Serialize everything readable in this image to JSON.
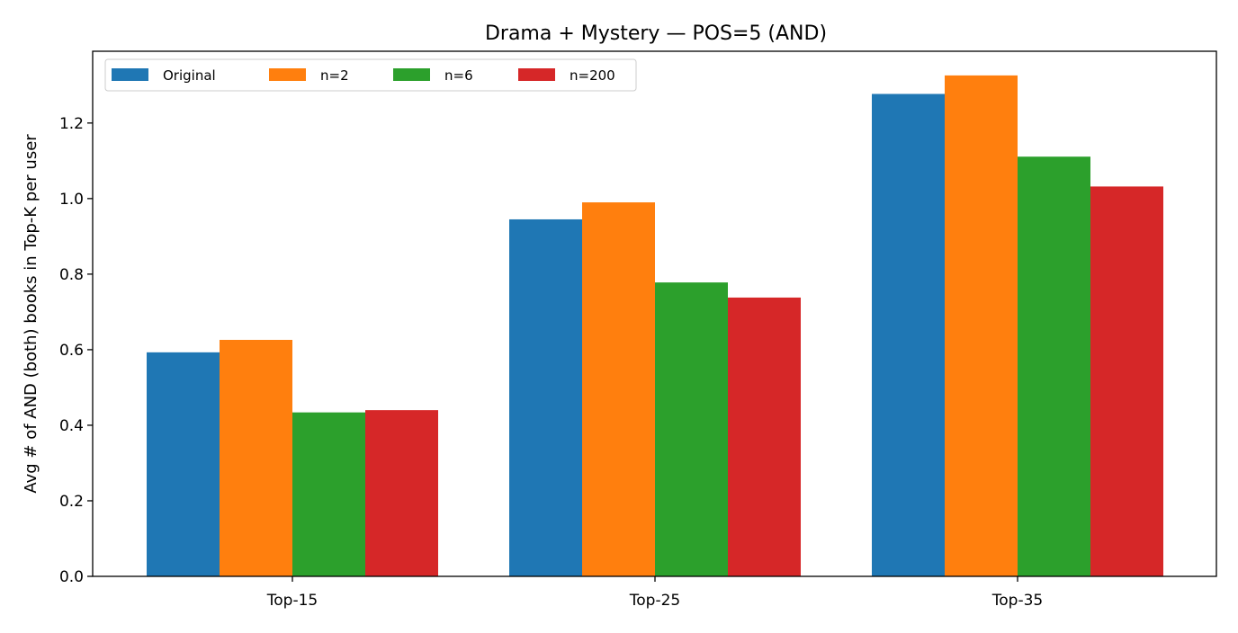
{
  "chart_data": {
    "type": "bar",
    "title": "Drama + Mystery — POS=5 (AND)",
    "xlabel": "",
    "ylabel": "Avg # of AND (both) books in Top-K per user",
    "categories": [
      "Top-15",
      "Top-25",
      "Top-35"
    ],
    "series": [
      {
        "name": "Original",
        "color": "#1f77b4",
        "values": [
          0.593,
          0.945,
          1.277
        ]
      },
      {
        "name": "n=2",
        "color": "#ff7f0e",
        "values": [
          0.626,
          0.99,
          1.326
        ]
      },
      {
        "name": "n=6",
        "color": "#2ca02c",
        "values": [
          0.434,
          0.778,
          1.111
        ]
      },
      {
        "name": "n=200",
        "color": "#d62728",
        "values": [
          0.44,
          0.738,
          1.032
        ]
      }
    ],
    "ylim": [
      0,
      1.39
    ],
    "yticks": [
      "0.0",
      "0.2",
      "0.4",
      "0.6",
      "0.8",
      "1.0",
      "1.2"
    ],
    "legend": "top-left",
    "grid": false
  }
}
